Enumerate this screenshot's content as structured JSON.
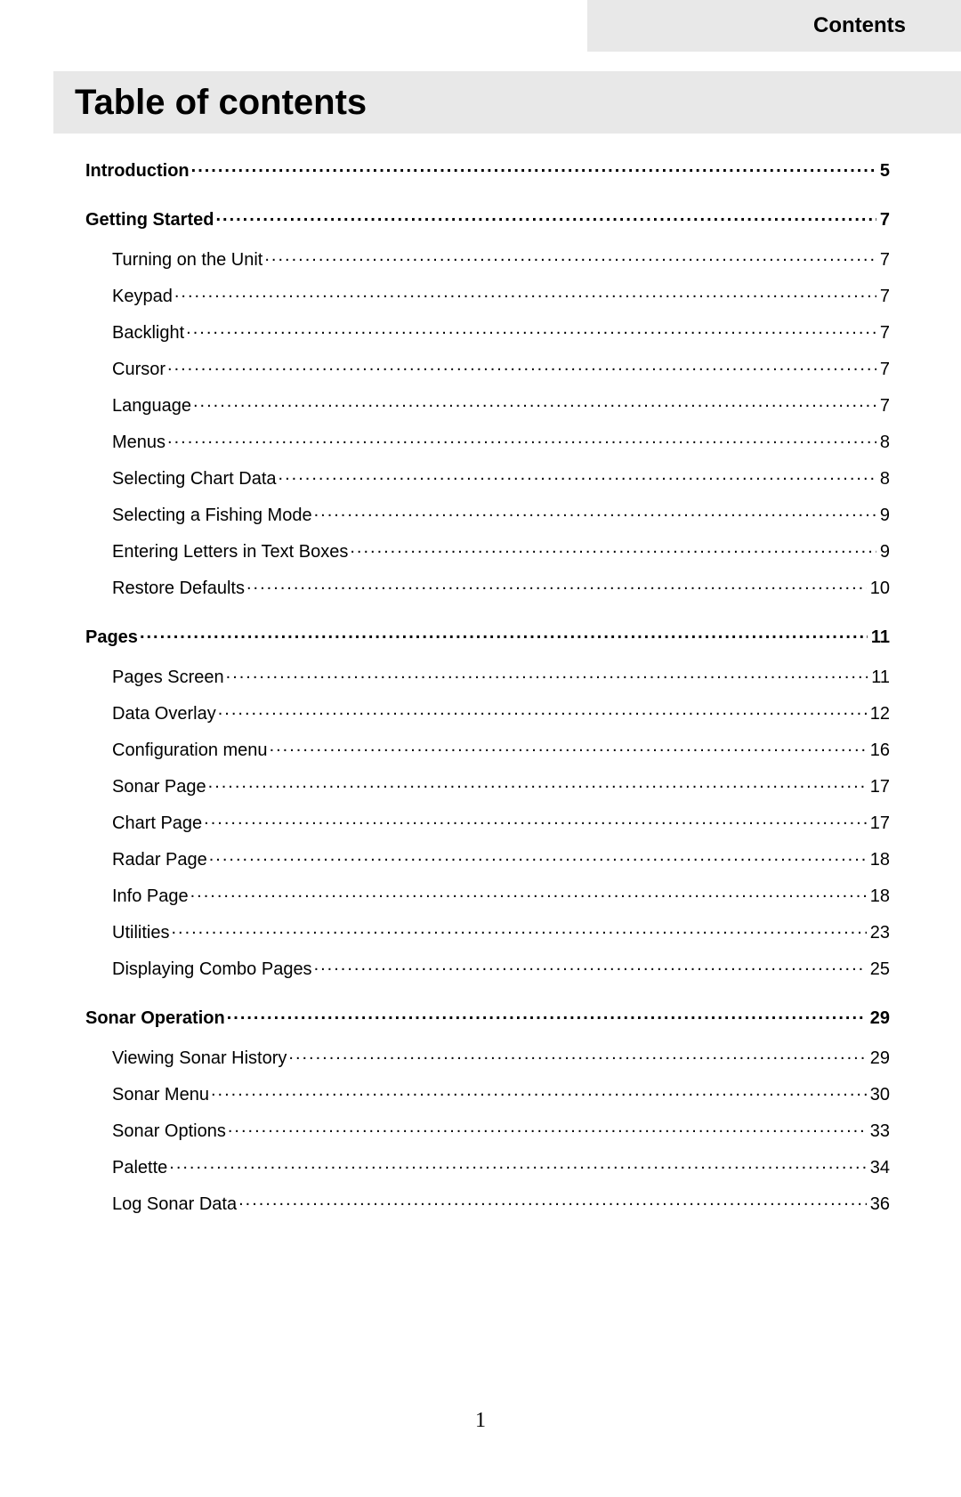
{
  "header": {
    "label": "Contents"
  },
  "title": "Table of contents",
  "page_number": "1",
  "styles": {
    "background_color": "#ffffff",
    "shaded_bar_color": "#e8e8e8",
    "text_color": "#000000",
    "title_fontsize_pt": 30,
    "section_fontsize_pt": 15,
    "item_fontsize_pt": 15,
    "header_fontsize_pt": 18,
    "font_family": "Arial, Helvetica, sans-serif",
    "pagenum_font_family": "Times New Roman, serif"
  },
  "toc": [
    {
      "level": 0,
      "title": "Introduction",
      "page": "5"
    },
    {
      "level": 0,
      "title": "Getting Started",
      "page": "7"
    },
    {
      "level": 1,
      "title": "Turning on the Unit",
      "page": "7"
    },
    {
      "level": 1,
      "title": "Keypad",
      "page": "7"
    },
    {
      "level": 1,
      "title": "Backlight",
      "page": "7"
    },
    {
      "level": 1,
      "title": "Cursor",
      "page": "7"
    },
    {
      "level": 1,
      "title": "Language",
      "page": "7"
    },
    {
      "level": 1,
      "title": "Menus",
      "page": "8"
    },
    {
      "level": 1,
      "title": "Selecting Chart Data ",
      "page": "8"
    },
    {
      "level": 1,
      "title": "Selecting a Fishing Mode",
      "page": "9"
    },
    {
      "level": 1,
      "title": "Entering Letters in Text Boxes",
      "page": "9"
    },
    {
      "level": 1,
      "title": "Restore Defaults",
      "page": "10"
    },
    {
      "level": 0,
      "title": "Pages",
      "page": "11"
    },
    {
      "level": 1,
      "title": "Pages Screen",
      "page": "11"
    },
    {
      "level": 1,
      "title": "Data Overlay",
      "page": "12"
    },
    {
      "level": 1,
      "title": "Configuration menu",
      "page": "16"
    },
    {
      "level": 1,
      "title": "Sonar Page",
      "page": "17"
    },
    {
      "level": 1,
      "title": "Chart Page",
      "page": "17"
    },
    {
      "level": 1,
      "title": "Radar Page",
      "page": "18"
    },
    {
      "level": 1,
      "title": "Info Page",
      "page": "18"
    },
    {
      "level": 1,
      "title": "Utilities",
      "page": "23"
    },
    {
      "level": 1,
      "title": "Displaying Combo Pages",
      "page": "25"
    },
    {
      "level": 0,
      "title": "Sonar Operation",
      "page": "29"
    },
    {
      "level": 1,
      "title": "Viewing Sonar History",
      "page": "29"
    },
    {
      "level": 1,
      "title": "Sonar Menu",
      "page": "30"
    },
    {
      "level": 1,
      "title": "Sonar Options",
      "page": "33"
    },
    {
      "level": 1,
      "title": "Palette",
      "page": "34"
    },
    {
      "level": 1,
      "title": "Log Sonar Data",
      "page": "36"
    }
  ]
}
